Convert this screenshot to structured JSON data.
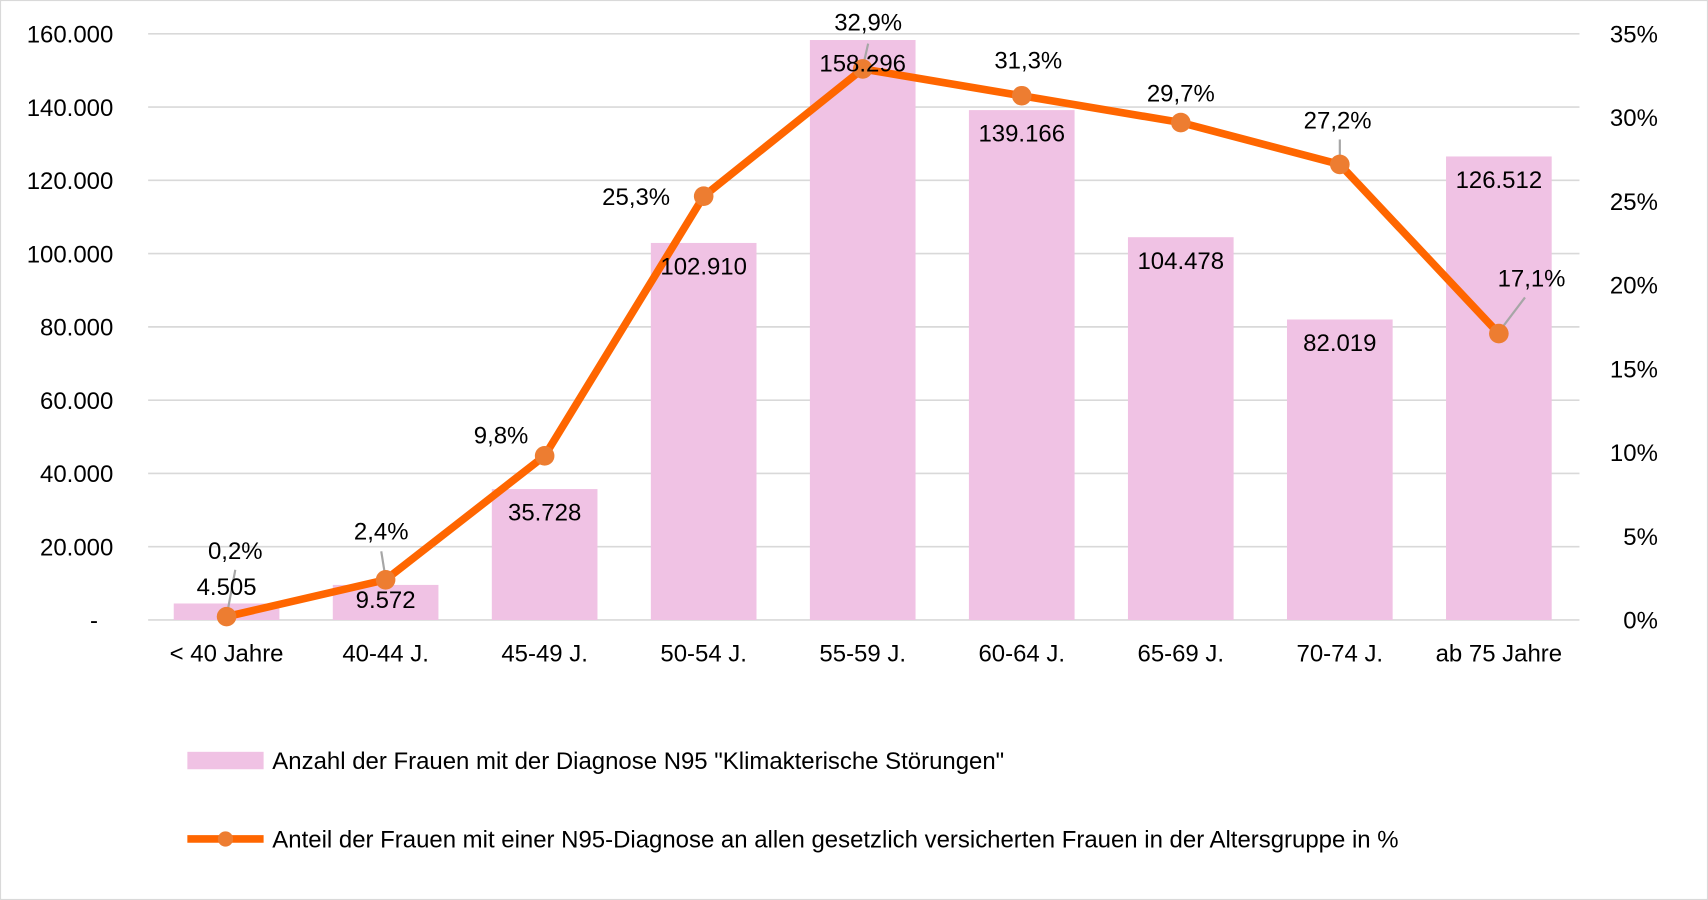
{
  "chart_data": {
    "type": "bar+line",
    "title": "",
    "categories": [
      "< 40 Jahre",
      "40-44 J.",
      "45-49 J.",
      "50-54 J.",
      "55-59 J.",
      "60-64 J.",
      "65-69 J.",
      "70-74 J.",
      "ab 75 Jahre"
    ],
    "series": [
      {
        "name": "Anzahl der Frauen mit der Diagnose N95 \"Klimakterische Störungen\"",
        "type": "bar",
        "axis": "left",
        "color": "#F0C2E4",
        "values": [
          4505,
          9572,
          35728,
          102910,
          158296,
          139166,
          104478,
          82019,
          126512
        ]
      },
      {
        "name": "Anteil der Frauen mit einer N95-Diagnose an allen gesetzlich versicherten Frauen in der Altersgruppe in %",
        "type": "line",
        "axis": "right",
        "color": "#FF6600",
        "marker_color": "#ED7D31",
        "values": [
          0.2,
          2.4,
          9.8,
          25.3,
          32.9,
          31.3,
          29.7,
          27.2,
          17.1
        ]
      }
    ],
    "y_left": {
      "lim": [
        0,
        160000
      ],
      "ticks": [
        "-",
        "20.000",
        "40.000",
        "60.000",
        "80.000",
        "100.000",
        "120.000",
        "140.000",
        "160.000"
      ]
    },
    "y_right": {
      "lim": [
        0,
        35
      ],
      "ticks": [
        "0%",
        "5%",
        "10%",
        "15%",
        "20%",
        "25%",
        "30%",
        "35%"
      ]
    },
    "grid": true,
    "legend_position": "bottom"
  }
}
